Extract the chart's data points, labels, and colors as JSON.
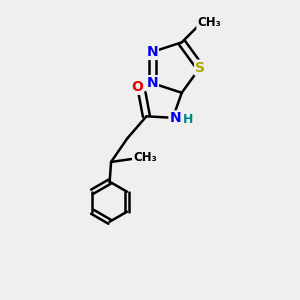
{
  "background_color": "#efefef",
  "atom_colors": {
    "C": "#000000",
    "N": "#0000ee",
    "O": "#ee0000",
    "S": "#aaaa00",
    "H": "#008888"
  },
  "bond_color": "#000000",
  "bond_width": 1.8,
  "figsize": [
    3.0,
    3.0
  ],
  "dpi": 100
}
